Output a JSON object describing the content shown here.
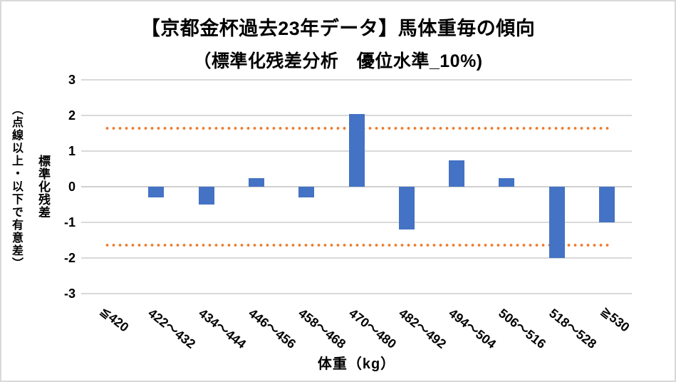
{
  "title": {
    "line1": "【京都金杯過去23年データ】馬体重毎の傾向",
    "line2": "（標準化残差分析　優位水準_10%)"
  },
  "axes": {
    "y_title": "標準化残差",
    "y_title_note": "（点線以上・以下で有意差）",
    "x_title": "体重（kg）",
    "y_ticks": [
      3,
      2,
      1,
      0,
      -1,
      -2,
      -3
    ]
  },
  "chart_data": {
    "type": "bar",
    "title": "【京都金杯過去23年データ】馬体重毎の傾向（標準化残差分析　優位水準_10%)",
    "categories": [
      "≦420",
      "422～432",
      "434～444",
      "446～456",
      "458～468",
      "470～480",
      "482～492",
      "494～504",
      "506～516",
      "518～528",
      "≧530"
    ],
    "values": [
      0,
      -0.3,
      -0.5,
      0.25,
      -0.3,
      2.05,
      -1.2,
      0.75,
      0.25,
      -2.0,
      -1.0
    ],
    "xlabel": "体重（kg）",
    "ylabel": "標準化残差（点線以上・以下で有意差）",
    "ylim": [
      -3,
      3
    ],
    "ytick_step": 1,
    "significance_lines": [
      1.645,
      -1.645
    ],
    "grid": "horizontal",
    "legend": "none",
    "colors": {
      "bar": "#4472C4",
      "significance_dotted": "#ED7D31",
      "gridline": "#D9D9D9",
      "text": "#000000",
      "background": "#FFFFFF"
    }
  }
}
